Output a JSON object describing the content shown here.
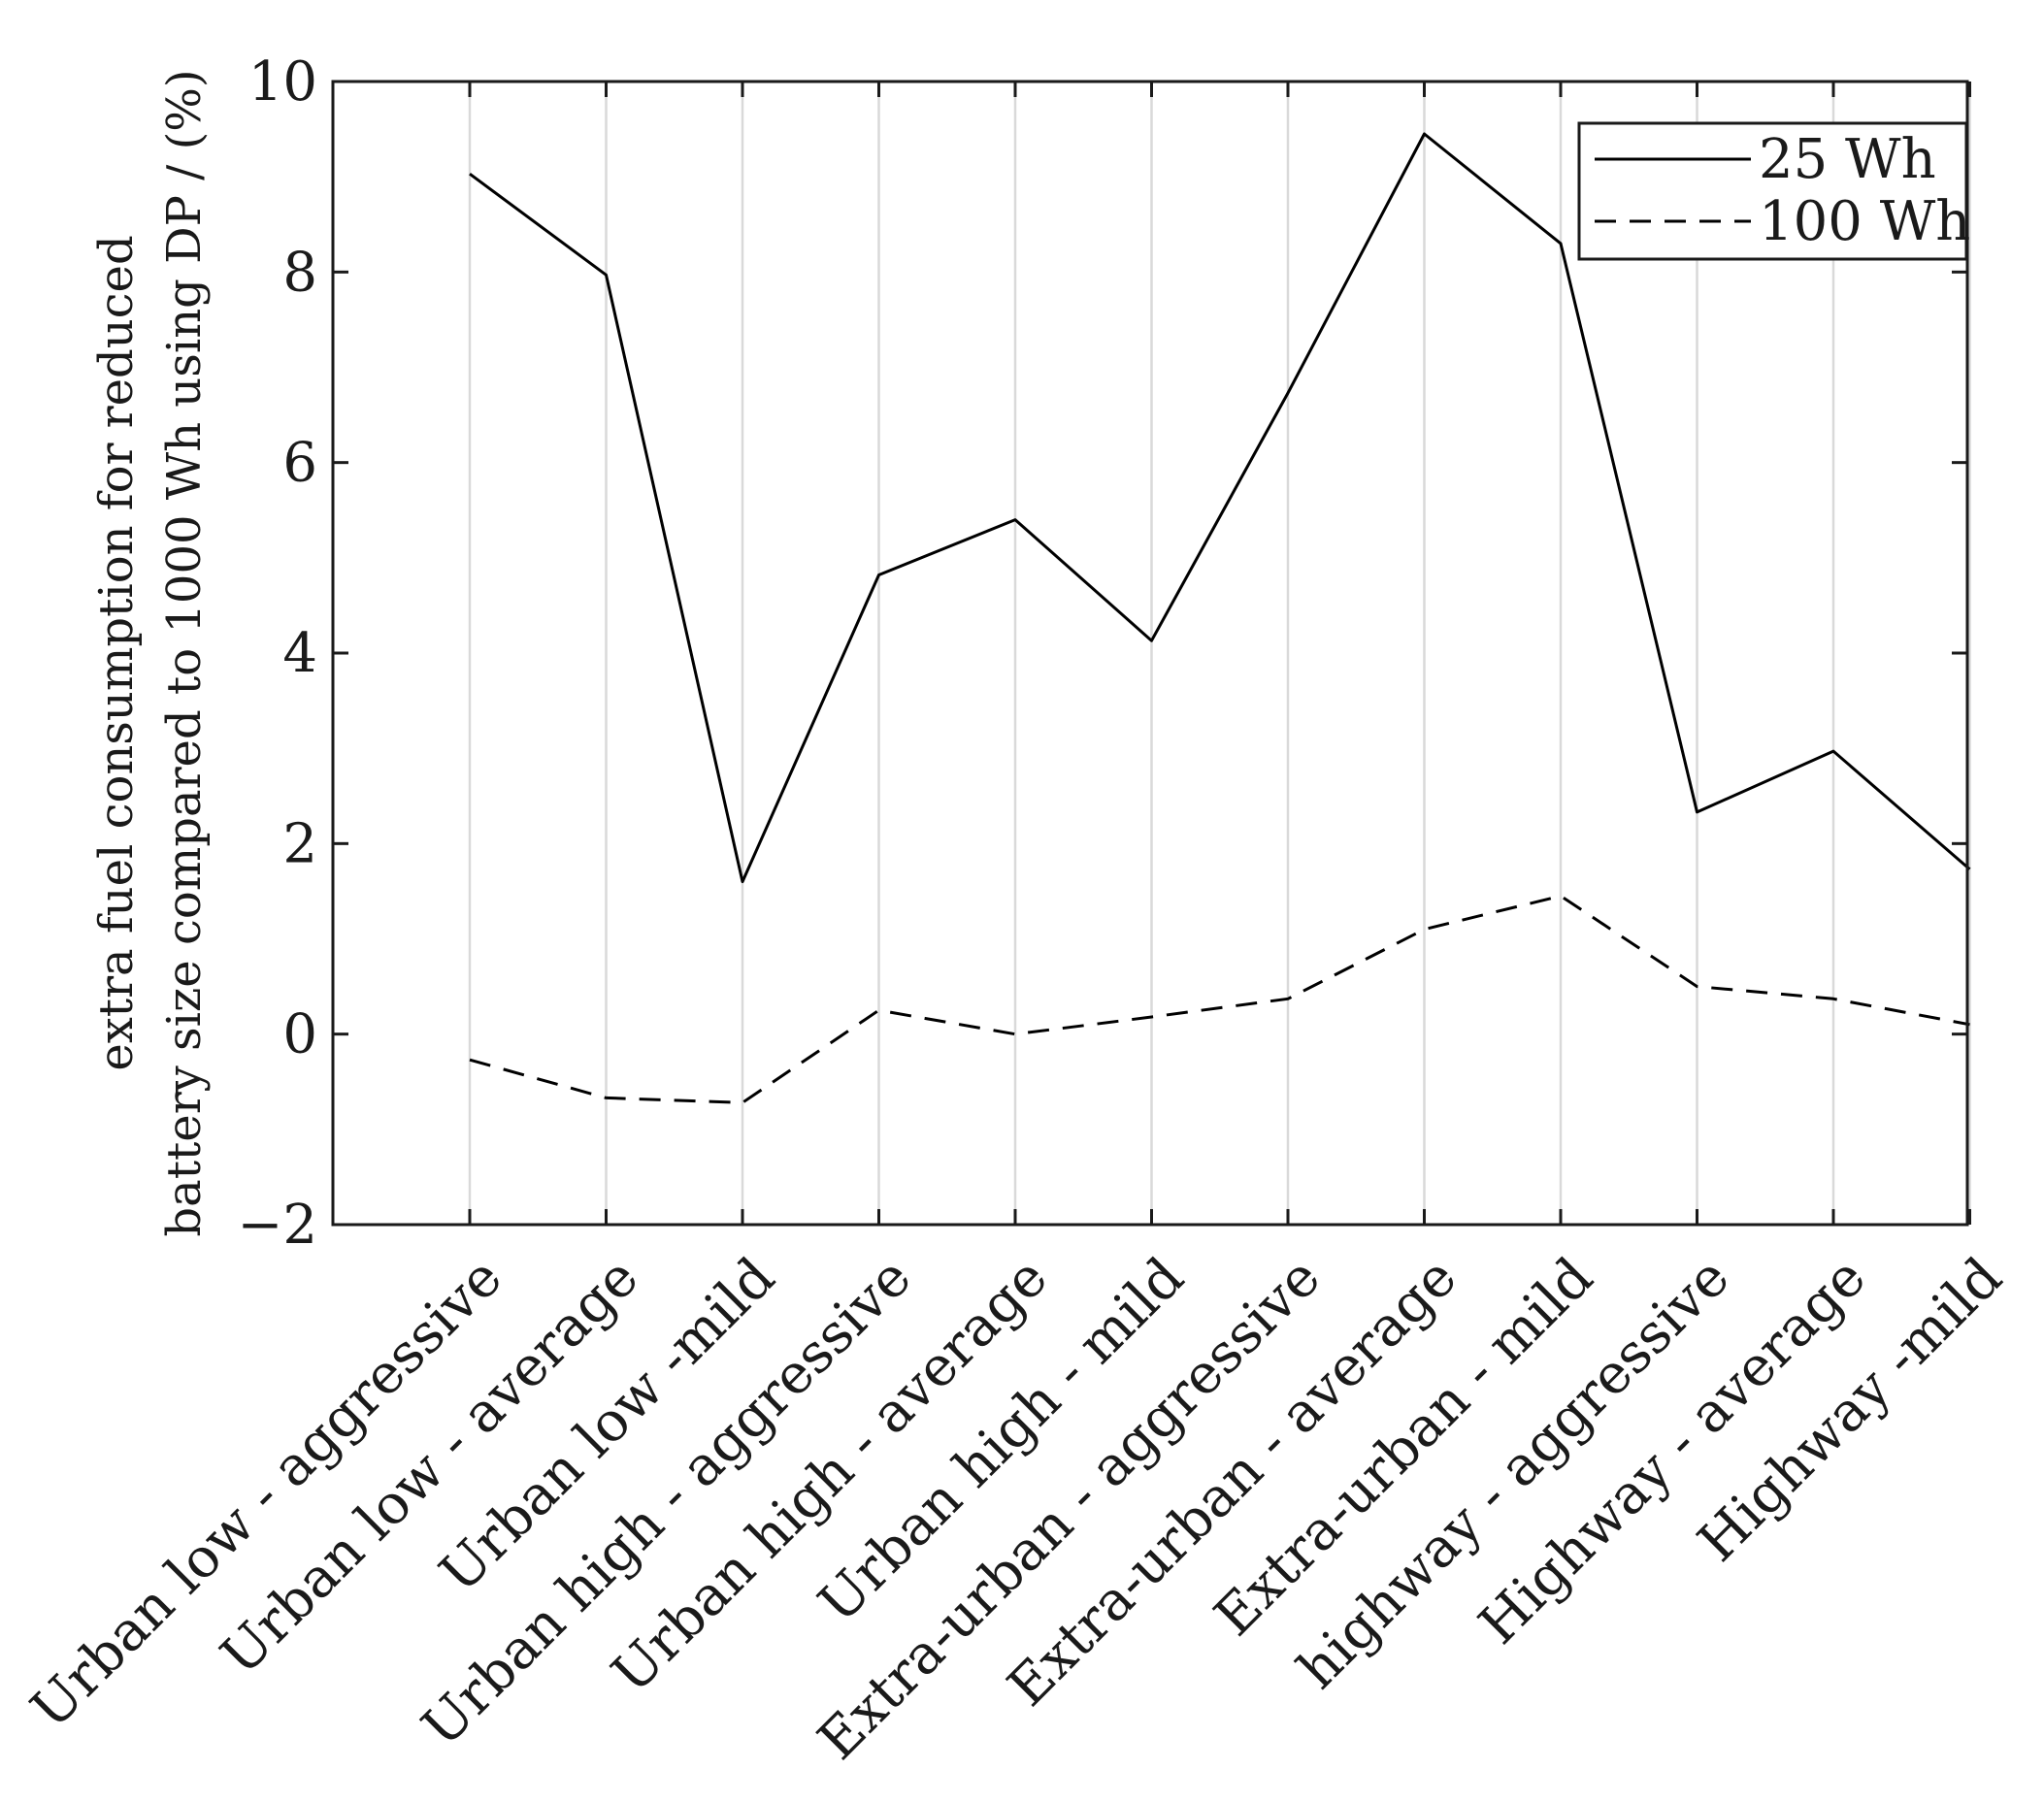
{
  "chart_data": {
    "type": "line",
    "title": "",
    "xlabel": "",
    "ylabel": [
      "extra fuel consumption for reduced",
      "battery size compared to 1000 Wh using DP / (%)"
    ],
    "ylim": [
      -2,
      10
    ],
    "yticks": [
      -2,
      0,
      2,
      4,
      6,
      8,
      10
    ],
    "ytick_labels": [
      "−2",
      "0",
      "2",
      "4",
      "6",
      "8",
      "10"
    ],
    "grid": "vertical",
    "legend_position": "top-right",
    "categories": [
      "Urban low - aggressive",
      "Urban low - average",
      "Urban low -mild",
      "Urban high - aggressive",
      "Urban high - average",
      "Urban high - mild",
      "Extra-urban - aggressive",
      "Extra-urban - average",
      "Extra-urban - mild",
      "highway - aggressive",
      "Highway - average",
      "Highway -mild"
    ],
    "series": [
      {
        "name": "25 Wh",
        "style": "solid",
        "color": "#000000",
        "values": [
          9.03,
          7.97,
          1.6,
          4.82,
          5.4,
          4.13,
          6.73,
          9.45,
          8.3,
          2.33,
          2.97,
          1.73
        ]
      },
      {
        "name": "100 Wh",
        "style": "dashed",
        "color": "#000000",
        "values": [
          -0.27,
          -0.67,
          -0.72,
          0.25,
          0.0,
          0.18,
          0.37,
          1.1,
          1.45,
          0.5,
          0.37,
          0.1
        ]
      }
    ]
  }
}
